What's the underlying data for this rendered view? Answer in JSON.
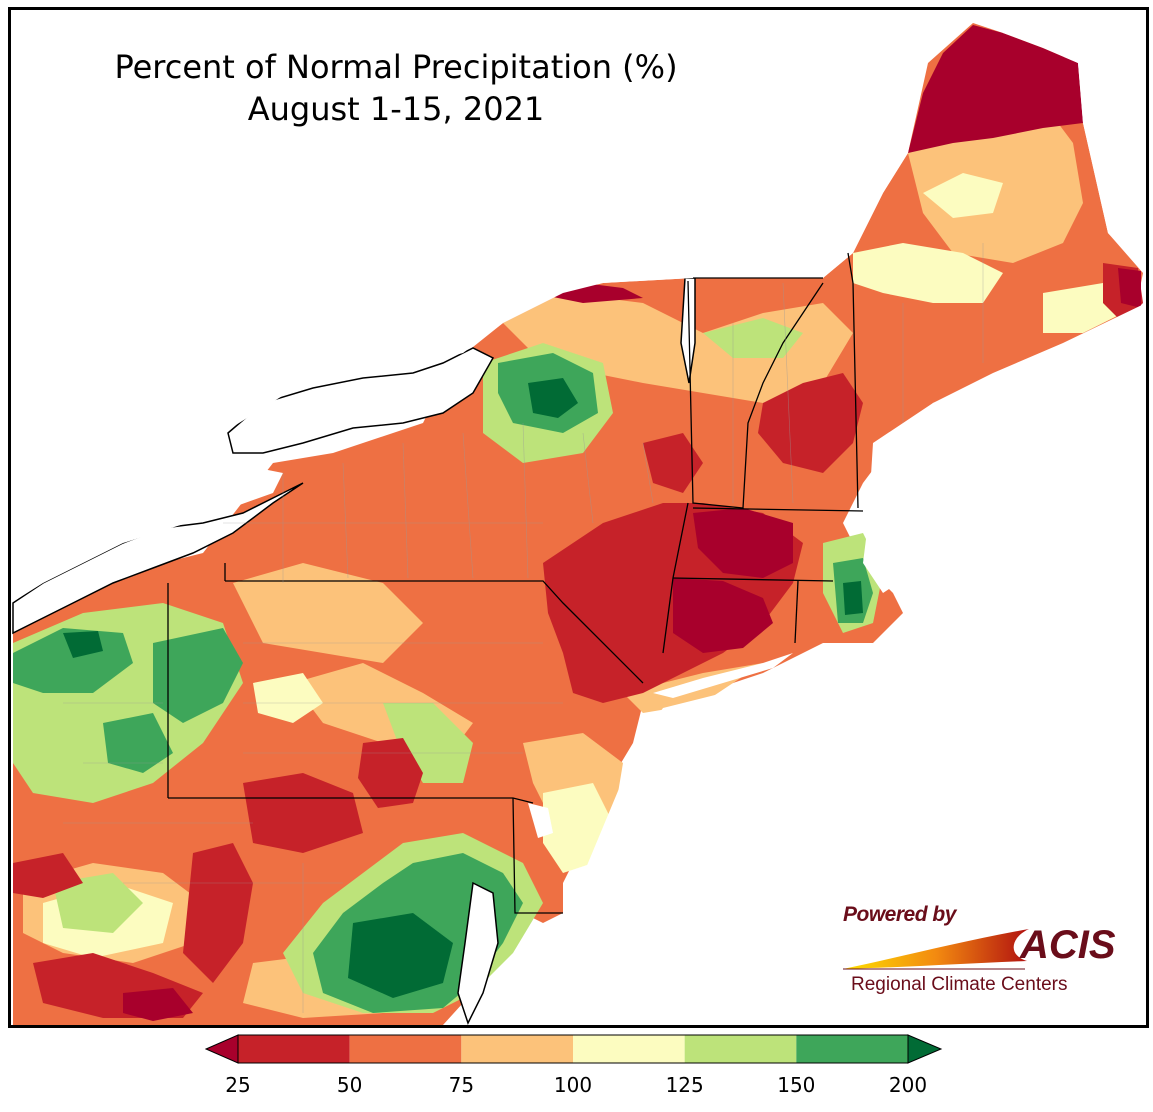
{
  "title": {
    "line1": "Percent of Normal Precipitation (%)",
    "line2": "August 1-15, 2021"
  },
  "credit": {
    "powered_by": "Powered by",
    "acis": "ACIS",
    "regional": "Regional Climate Centers"
  },
  "legend": {
    "bins": [
      {
        "from": 25,
        "to": 50,
        "color": "#c62229"
      },
      {
        "from": 50,
        "to": 75,
        "color": "#ee7043"
      },
      {
        "from": 75,
        "to": 100,
        "color": "#fcc27a"
      },
      {
        "from": 100,
        "to": 125,
        "color": "#fcfcc0"
      },
      {
        "from": 125,
        "to": 150,
        "color": "#bde37a"
      },
      {
        "from": 150,
        "to": 200,
        "color": "#3ea65a"
      }
    ],
    "under_color": "#a8002c",
    "over_color": "#016b35",
    "ticks": [
      "25",
      "50",
      "75",
      "100",
      "125",
      "150",
      "200"
    ]
  },
  "map": {
    "region": "Northeast United States",
    "colors": {
      "very_dry": "#a8002c",
      "dry": "#c62229",
      "below": "#ee7043",
      "near_below": "#fcc27a",
      "near_above": "#fcfcc0",
      "above": "#bde37a",
      "wet": "#3ea65a",
      "very_wet": "#016b35"
    }
  }
}
